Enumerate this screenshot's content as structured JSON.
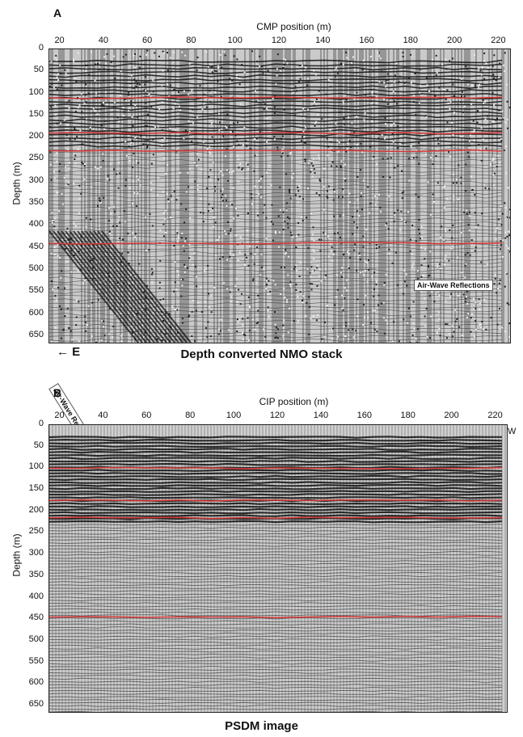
{
  "panel_a": {
    "letter": "A",
    "x_axis_label": "CMP position (m)",
    "y_axis_label": "Depth (m)",
    "caption": "Depth converted NMO stack",
    "x_ticks": [
      "20",
      "40",
      "60",
      "80",
      "100",
      "120",
      "140",
      "160",
      "180",
      "200",
      "220"
    ],
    "y_ticks": [
      "0",
      "50",
      "100",
      "150",
      "200",
      "250",
      "300",
      "350",
      "400",
      "450",
      "500",
      "550",
      "600",
      "650"
    ],
    "annotation_left": "Air-Wave Reflections",
    "annotation_right": "Air-Wave Reflections",
    "direction_label": "E",
    "horizons_depth_m": [
      110,
      190,
      230,
      440
    ],
    "horizon_color": "#d23a3a"
  },
  "panel_b": {
    "letter": "B",
    "x_axis_label": "CIP position (m)",
    "y_axis_label": "Depth (m)",
    "caption": "PSDM image",
    "x_ticks": [
      "20",
      "40",
      "60",
      "80",
      "100",
      "120",
      "140",
      "160",
      "180",
      "200",
      "220"
    ],
    "y_ticks": [
      "0",
      "50",
      "100",
      "150",
      "200",
      "250",
      "300",
      "350",
      "400",
      "450",
      "500",
      "550",
      "600",
      "650"
    ],
    "edge_mark": "W",
    "horizons_depth_m": [
      100,
      175,
      215,
      445
    ],
    "horizon_color": "#d23a3a"
  }
}
